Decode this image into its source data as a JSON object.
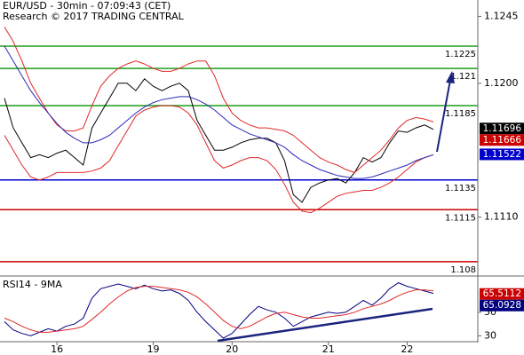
{
  "chart_data": {
    "type": "line",
    "title": "EUR/USD - 30min - 07:09:43 (CET)",
    "subtitle": "Research © 2017 TRADING CENTRAL",
    "categories": [
      null,
      null,
      null,
      null,
      null,
      null,
      "16",
      null,
      null,
      null,
      null,
      null,
      null,
      null,
      null,
      null,
      null,
      "19",
      null,
      null,
      null,
      null,
      null,
      null,
      null,
      null,
      "20",
      null,
      null,
      null,
      null,
      null,
      null,
      null,
      null,
      null,
      null,
      "21",
      null,
      null,
      null,
      null,
      null,
      null,
      null,
      null,
      "22",
      null,
      null,
      null
    ],
    "ylim": [
      1.1071,
      1.1256
    ],
    "yticks": [
      1.1245,
      {
        "value": 1.12,
        "label": "1.1200"
      },
      {
        "value": 1.111,
        "label": "1.1110"
      }
    ],
    "series": [
      {
        "color": "#000000",
        "values": [
          1.119,
          1.117,
          1.116,
          1.115,
          1.1152,
          1.115,
          1.1153,
          1.1155,
          1.115,
          1.1145,
          1.117,
          1.118,
          1.119,
          1.12,
          1.12,
          1.1195,
          1.1203,
          1.1198,
          1.1195,
          1.1198,
          1.12,
          1.1195,
          1.1175,
          1.1165,
          1.1155,
          1.1155,
          1.1157,
          1.116,
          1.1162,
          1.1163,
          1.1163,
          1.116,
          1.1148,
          1.1125,
          1.112,
          1.113,
          1.1133,
          1.1135,
          1.1136,
          1.1133,
          1.114,
          1.115,
          1.1147,
          1.115,
          1.116,
          1.1168,
          1.1167,
          1.117,
          1.1172,
          1.1169
        ]
      },
      {
        "color": "#e02828",
        "values": [
          1.1238,
          1.1228,
          1.1215,
          1.12,
          1.119,
          1.118,
          1.1172,
          1.1168,
          1.1168,
          1.117,
          1.1185,
          1.1198,
          1.1205,
          1.121,
          1.1213,
          1.1215,
          1.1213,
          1.121,
          1.1208,
          1.1208,
          1.121,
          1.1213,
          1.1215,
          1.1215,
          1.1205,
          1.119,
          1.118,
          1.1175,
          1.1172,
          1.117,
          1.117,
          1.1169,
          1.1168,
          1.1165,
          1.116,
          1.1155,
          1.115,
          1.1147,
          1.1145,
          1.1142,
          1.114,
          1.1145,
          1.115,
          1.1155,
          1.1162,
          1.117,
          1.1175,
          1.1177,
          1.1176,
          1.1174
        ]
      },
      {
        "color": "#e02828",
        "values": [
          1.1165,
          1.1155,
          1.1145,
          1.1137,
          1.1135,
          1.1137,
          1.114,
          1.114,
          1.114,
          1.114,
          1.1141,
          1.1143,
          1.1148,
          1.1158,
          1.1168,
          1.1178,
          1.1182,
          1.1184,
          1.1185,
          1.1185,
          1.1184,
          1.118,
          1.1172,
          1.116,
          1.1148,
          1.1143,
          1.1145,
          1.1148,
          1.115,
          1.115,
          1.1148,
          1.1142,
          1.1132,
          1.112,
          1.1114,
          1.1113,
          1.1116,
          1.112,
          1.1124,
          1.1126,
          1.1127,
          1.1128,
          1.1128,
          1.113,
          1.1133,
          1.1137,
          1.1142,
          1.1147,
          1.115,
          1.1152
        ]
      },
      {
        "color": "#2a2ab8",
        "values": [
          1.1225,
          1.1215,
          1.1205,
          1.1195,
          1.1187,
          1.118,
          1.1173,
          1.1167,
          1.1163,
          1.116,
          1.116,
          1.1162,
          1.1165,
          1.117,
          1.1175,
          1.118,
          1.1184,
          1.1187,
          1.1189,
          1.119,
          1.1191,
          1.1191,
          1.1189,
          1.1186,
          1.1182,
          1.1177,
          1.1172,
          1.1169,
          1.1166,
          1.1164,
          1.1162,
          1.116,
          1.1157,
          1.1152,
          1.1148,
          1.1145,
          1.1142,
          1.114,
          1.1138,
          1.1137,
          1.1136,
          1.1136,
          1.1137,
          1.1139,
          1.1141,
          1.1143,
          1.1145,
          1.1148,
          1.115,
          1.1152
        ]
      }
    ],
    "levels": [
      {
        "value": 1.1225,
        "color": "#1e9e1e"
      },
      {
        "value": 1.121,
        "color": "#1e9e1e"
      },
      {
        "value": 1.1185,
        "color": "#1e9e1e"
      },
      {
        "value": 1.1135,
        "color": "#0000d0"
      },
      {
        "value": 1.1115,
        "color": "#cc0000"
      },
      {
        "value": 1.108,
        "color": "#cc0000"
      }
    ],
    "last_values": [
      {
        "value": 1.11696,
        "color": "#000000"
      },
      {
        "value": 1.11666,
        "color": "#cc0000"
      },
      {
        "value": 1.11522,
        "color": "#0000cc"
      }
    ],
    "rsi": {
      "title": "RSI14 - 9MA",
      "ylim": [
        25,
        80
      ],
      "yticks": [
        50,
        30
      ],
      "series": [
        {
          "color": "#000080",
          "values": [
            42,
            35,
            32,
            30,
            33,
            36,
            34,
            38,
            40,
            45,
            62,
            70,
            72,
            74,
            72,
            70,
            73,
            70,
            68,
            69,
            66,
            60,
            50,
            42,
            35,
            28,
            32,
            40,
            48,
            55,
            52,
            50,
            45,
            38,
            42,
            46,
            48,
            50,
            49,
            50,
            55,
            60,
            56,
            62,
            70,
            75,
            72,
            70,
            68,
            66
          ]
        },
        {
          "color": "#e02828",
          "values": [
            45,
            42,
            38,
            35,
            33,
            33,
            34,
            35,
            36,
            38,
            44,
            50,
            57,
            63,
            68,
            71,
            72,
            72,
            71,
            70,
            69,
            67,
            63,
            57,
            50,
            43,
            38,
            36,
            38,
            42,
            46,
            49,
            50,
            48,
            46,
            45,
            45,
            46,
            47,
            48,
            50,
            53,
            55,
            57,
            60,
            64,
            67,
            69,
            69,
            68
          ]
        }
      ],
      "last_values": [
        {
          "value": 65.5112,
          "color": "#cc0000"
        },
        {
          "value": 65.0928,
          "color": "#000080"
        }
      ]
    }
  }
}
